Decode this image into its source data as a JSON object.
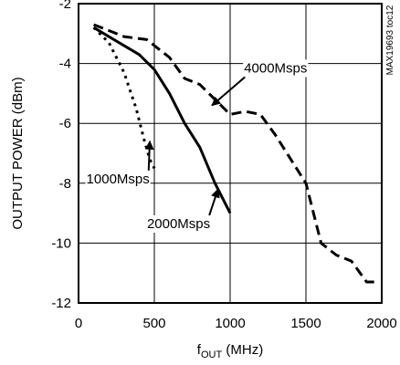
{
  "chart_data": {
    "type": "line",
    "xlabel": "f",
    "xlabel_sub": "OUT",
    "xlabel_unit": " (MHz)",
    "ylabel": "OUTPUT POWER (dBm)",
    "xlim": [
      0,
      2000
    ],
    "ylim": [
      -12,
      -2
    ],
    "xticks": [
      "0",
      "500",
      "1000",
      "1500",
      "2000"
    ],
    "yticks": [
      "-2",
      "-4",
      "-6",
      "-8",
      "-10",
      "-12"
    ],
    "grid": true,
    "series": [
      {
        "name": "1000Msps",
        "style": "dotted",
        "x": [
          100,
          200,
          300,
          380,
          430,
          470,
          500
        ],
        "y": [
          -2.8,
          -3.3,
          -4.3,
          -5.5,
          -6.5,
          -7.2,
          -7.5
        ]
      },
      {
        "name": "2000Msps",
        "style": "solid",
        "x": [
          100,
          200,
          400,
          500,
          600,
          700,
          800,
          900,
          1000
        ],
        "y": [
          -2.8,
          -3.1,
          -3.7,
          -4.2,
          -5.0,
          -6.0,
          -6.8,
          -8.0,
          -9.0
        ]
      },
      {
        "name": "4000Msps",
        "style": "dashed",
        "x": [
          100,
          200,
          300,
          450,
          600,
          700,
          800,
          900,
          1000,
          1100,
          1200,
          1300,
          1400,
          1500,
          1550,
          1600,
          1700,
          1800,
          1900,
          1950
        ],
        "y": [
          -2.7,
          -2.9,
          -3.1,
          -3.2,
          -3.8,
          -4.5,
          -4.7,
          -5.2,
          -5.7,
          -5.6,
          -5.7,
          -6.4,
          -7.2,
          -8.0,
          -9.0,
          -10.0,
          -10.4,
          -10.6,
          -11.3,
          -11.3
        ]
      }
    ],
    "annotations": [
      {
        "text": "4000Msps",
        "x": 1300,
        "y": -4.3,
        "arrow_to": [
          880,
          -5.4
        ]
      },
      {
        "text": "1000Msps",
        "x": 260,
        "y": -8.0,
        "arrow_to": [
          470,
          -6.6
        ]
      },
      {
        "text": "2000Msps",
        "x": 660,
        "y": -9.5,
        "arrow_to": [
          920,
          -8.2
        ]
      }
    ],
    "side_reference": "MAX19693 toc12"
  }
}
